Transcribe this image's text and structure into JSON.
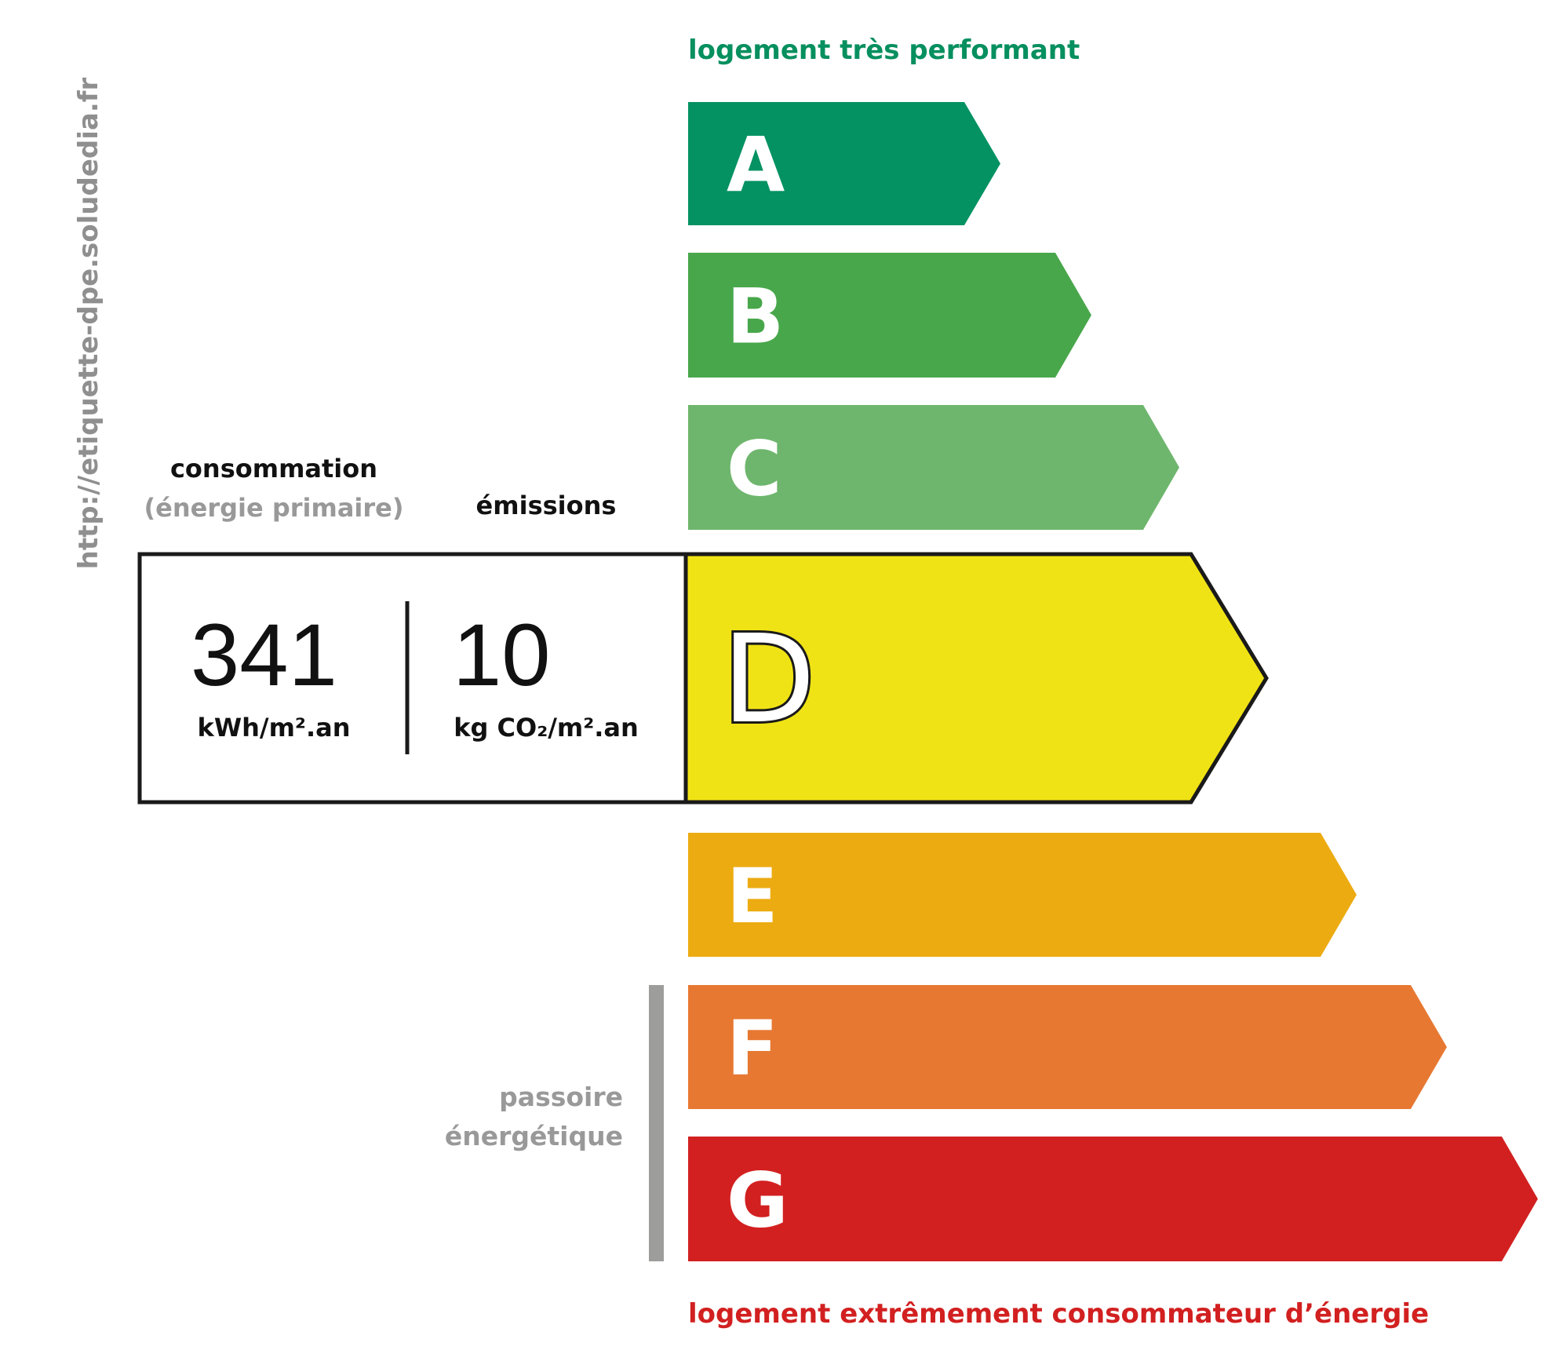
{
  "url": "http://etiquette-dpe.soludedia.fr",
  "top_label": "logement très performant",
  "bottom_label": "logement extrêmement consommateur d’énergie",
  "consumption": {
    "label": "consommation",
    "sublabel": "(énergie primaire)",
    "value": "341",
    "unit": "kWh/m².an"
  },
  "emissions": {
    "label": "émissions",
    "value": "10",
    "unit": "kg CO₂/m².an"
  },
  "passoire": {
    "line1": "passoire",
    "line2": "énergétique"
  },
  "current_class": "D",
  "classes": [
    {
      "letter": "A",
      "color": "#059262"
    },
    {
      "letter": "B",
      "color": "#48a74b"
    },
    {
      "letter": "C",
      "color": "#6eb66d"
    },
    {
      "letter": "D",
      "color": "#f0e315"
    },
    {
      "letter": "E",
      "color": "#ecab11"
    },
    {
      "letter": "F",
      "color": "#e77832"
    },
    {
      "letter": "G",
      "color": "#d22020"
    }
  ]
}
